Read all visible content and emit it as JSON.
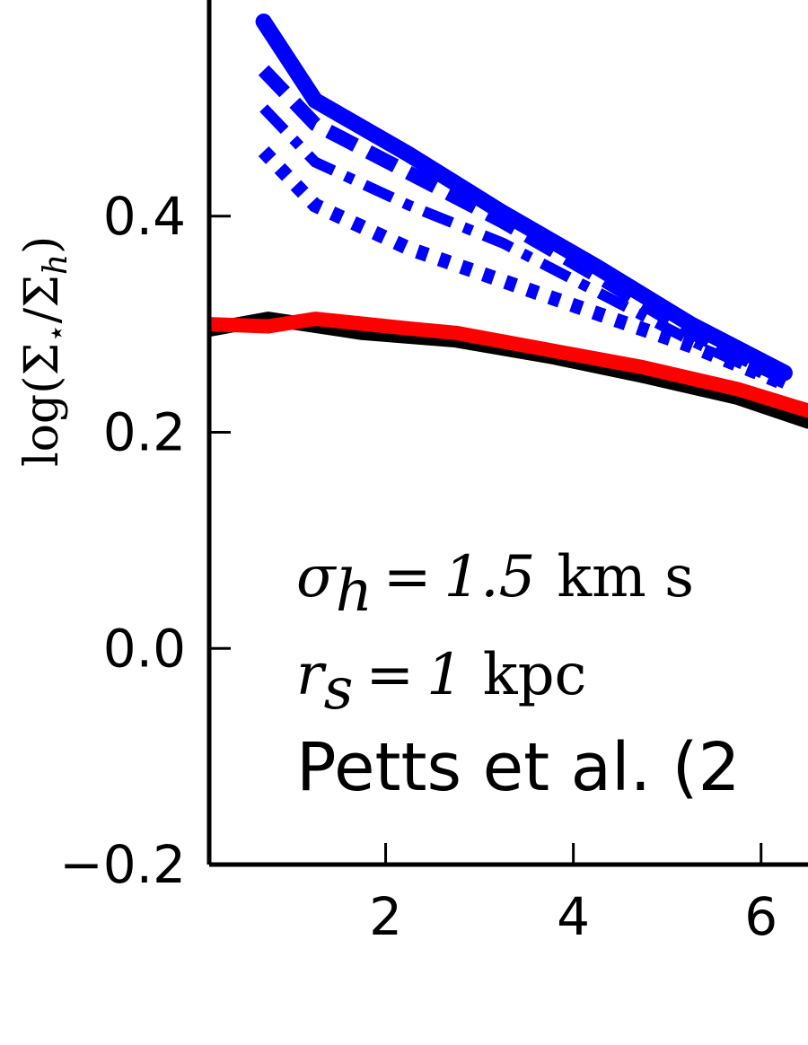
{
  "chart_data": {
    "type": "line",
    "title": "",
    "xlabel": "",
    "ylabel": "log(Σ⋆/Σh)",
    "xlim": [
      0.12,
      6.5
    ],
    "ylim": [
      -0.2,
      0.6
    ],
    "xticks": [
      2,
      4,
      6
    ],
    "yticks": [
      -0.2,
      0.0,
      0.2,
      0.4
    ],
    "xtick_labels": [
      "2",
      "4",
      "6"
    ],
    "ytick_labels": [
      "−0.2",
      "0.0",
      "0.2",
      "0.4"
    ],
    "annotations": [
      {
        "id": "sigma",
        "symbol": "σ",
        "sub": "h",
        "eq": "=",
        "value": "1.5",
        "unit": "km s"
      },
      {
        "id": "rs",
        "symbol": "r",
        "sub": "s",
        "eq": "=",
        "value": "1",
        "unit": "kpc"
      },
      {
        "id": "ref",
        "text": "Petts et al. (2"
      }
    ],
    "series": [
      {
        "name": "blue-solid",
        "color": "#0000ff",
        "style": "solid",
        "width": 18,
        "x": [
          0.7,
          1.25,
          2.25,
          3.25,
          4.25,
          5.25,
          6.25
        ],
        "y": [
          0.58,
          0.507,
          0.457,
          0.403,
          0.353,
          0.3,
          0.255
        ]
      },
      {
        "name": "blue-dashed",
        "color": "#0000ff",
        "style": "dashed",
        "width": 16,
        "x": [
          0.7,
          1.25,
          2.25,
          3.25,
          4.25,
          5.25,
          6.25
        ],
        "y": [
          0.535,
          0.485,
          0.44,
          0.395,
          0.345,
          0.293,
          0.25
        ]
      },
      {
        "name": "blue-dashdot",
        "color": "#0000ff",
        "style": "dashdot",
        "width": 12,
        "x": [
          0.7,
          1.25,
          2.25,
          3.25,
          4.25,
          5.25,
          6.25
        ],
        "y": [
          0.5,
          0.45,
          0.41,
          0.375,
          0.33,
          0.285,
          0.245
        ]
      },
      {
        "name": "blue-dotted",
        "color": "#0000ff",
        "style": "dotted",
        "width": 16,
        "x": [
          0.7,
          1.25,
          2.25,
          3.25,
          4.25,
          5.25,
          6.25
        ],
        "y": [
          0.46,
          0.41,
          0.37,
          0.34,
          0.31,
          0.28,
          0.245
        ]
      },
      {
        "name": "black-solid",
        "color": "#000000",
        "style": "solid",
        "width": 16,
        "x": [
          0.12,
          0.75,
          1.75,
          2.75,
          3.75,
          4.75,
          5.75,
          6.5
        ],
        "y": [
          0.295,
          0.305,
          0.292,
          0.285,
          0.27,
          0.252,
          0.232,
          0.21
        ]
      },
      {
        "name": "red-solid",
        "color": "#ff0000",
        "style": "solid",
        "width": 16,
        "x": [
          0.12,
          0.75,
          1.25,
          2.25,
          2.75,
          3.75,
          4.75,
          5.75,
          6.5
        ],
        "y": [
          0.3,
          0.298,
          0.305,
          0.296,
          0.292,
          0.276,
          0.26,
          0.24,
          0.22
        ]
      }
    ]
  }
}
